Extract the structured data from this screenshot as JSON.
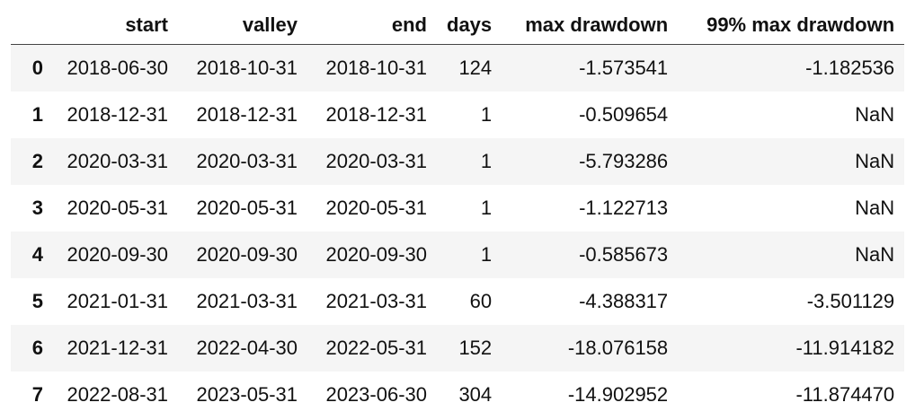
{
  "table": {
    "columns": [
      "start",
      "valley",
      "end",
      "days",
      "max drawdown",
      "99% max drawdown"
    ],
    "index_header": "",
    "rows": [
      {
        "index": "0",
        "start": "2018-06-30",
        "valley": "2018-10-31",
        "end": "2018-10-31",
        "days": "124",
        "max_drawdown": "-1.573541",
        "max_drawdown_99": "-1.182536"
      },
      {
        "index": "1",
        "start": "2018-12-31",
        "valley": "2018-12-31",
        "end": "2018-12-31",
        "days": "1",
        "max_drawdown": "-0.509654",
        "max_drawdown_99": "NaN"
      },
      {
        "index": "2",
        "start": "2020-03-31",
        "valley": "2020-03-31",
        "end": "2020-03-31",
        "days": "1",
        "max_drawdown": "-5.793286",
        "max_drawdown_99": "NaN"
      },
      {
        "index": "3",
        "start": "2020-05-31",
        "valley": "2020-05-31",
        "end": "2020-05-31",
        "days": "1",
        "max_drawdown": "-1.122713",
        "max_drawdown_99": "NaN"
      },
      {
        "index": "4",
        "start": "2020-09-30",
        "valley": "2020-09-30",
        "end": "2020-09-30",
        "days": "1",
        "max_drawdown": "-0.585673",
        "max_drawdown_99": "NaN"
      },
      {
        "index": "5",
        "start": "2021-01-31",
        "valley": "2021-03-31",
        "end": "2021-03-31",
        "days": "60",
        "max_drawdown": "-4.388317",
        "max_drawdown_99": "-3.501129"
      },
      {
        "index": "6",
        "start": "2021-12-31",
        "valley": "2022-04-30",
        "end": "2022-05-31",
        "days": "152",
        "max_drawdown": "-18.076158",
        "max_drawdown_99": "-11.914182"
      },
      {
        "index": "7",
        "start": "2022-08-31",
        "valley": "2023-05-31",
        "end": "2023-06-30",
        "days": "304",
        "max_drawdown": "-14.902952",
        "max_drawdown_99": "-11.874470"
      }
    ]
  },
  "colors": {
    "stripe": "#f5f5f5",
    "text": "#111111",
    "header_rule": "#444444"
  }
}
